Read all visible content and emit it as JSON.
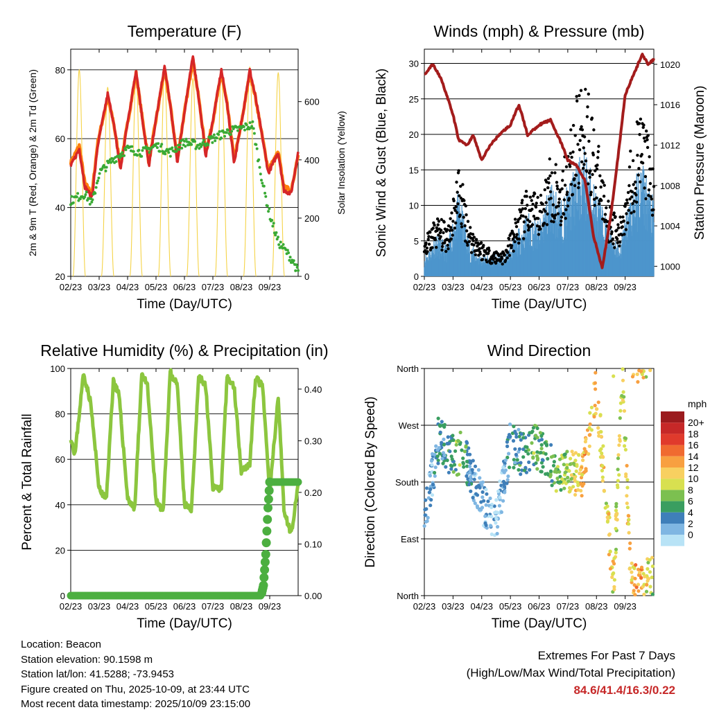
{
  "colors": {
    "temp2m": "#d62728",
    "temp9m": "#ff7f0e",
    "dewpoint": "#3aaa35",
    "solar": "#f5d347",
    "wind": "#4c95cc",
    "gust": "#000000",
    "pressure": "#a31c1c",
    "rh": "#8cc63f",
    "precip": "#4caf40",
    "extremes": "#c62828"
  },
  "x_ticks": [
    "02/23",
    "03/23",
    "04/23",
    "05/23",
    "06/23",
    "07/23",
    "08/23",
    "09/23"
  ],
  "chart_data": [
    {
      "type": "line",
      "title": "Temperature (F)",
      "xlabel": "Time (Day/UTC)",
      "ylabel": "2m & 9m T (Red, Orange) & 2m Td (Green)",
      "ylabel_right": "Solar Insolation (Yellow)",
      "ylim": [
        20,
        86
      ],
      "yticks": [
        20,
        40,
        60,
        80
      ],
      "ylim_right": [
        0,
        780
      ],
      "yticks_right": [
        0,
        200,
        400,
        600
      ],
      "series": [
        {
          "name": "2m T",
          "x": [
            0.0,
            0.3,
            0.5,
            0.75,
            0.95,
            1.3,
            1.5,
            1.75,
            1.95,
            2.3,
            2.5,
            2.75,
            2.95,
            3.3,
            3.5,
            3.75,
            3.95,
            4.3,
            4.5,
            4.75,
            4.95,
            5.3,
            5.5,
            5.75,
            5.95,
            6.3,
            6.5,
            6.75,
            6.95,
            7.3,
            7.5,
            7.75,
            8.0
          ],
          "values": [
            52,
            57,
            46,
            43,
            58,
            73,
            65,
            51,
            62,
            80,
            67,
            52,
            63,
            81,
            70,
            53,
            65,
            84,
            72,
            55,
            63,
            80,
            70,
            53,
            62,
            80,
            72,
            60,
            50,
            56,
            45,
            44,
            56
          ]
        },
        {
          "name": "9m T",
          "x": [
            0.0,
            0.3,
            0.5,
            0.75,
            0.95,
            1.3,
            1.5,
            1.75,
            1.95,
            2.3,
            2.5,
            2.75,
            2.95,
            3.3,
            3.5,
            3.75,
            3.95,
            4.3,
            4.5,
            4.75,
            4.95,
            5.3,
            5.5,
            5.75,
            5.95,
            6.3,
            6.5,
            6.75,
            6.95,
            7.3,
            7.5,
            7.75,
            8.0
          ],
          "values": [
            53,
            58,
            47,
            44,
            59,
            72,
            65,
            52,
            62,
            79,
            67,
            53,
            63,
            80,
            70,
            54,
            65,
            83,
            72,
            56,
            63,
            79,
            70,
            54,
            62,
            79,
            72,
            60,
            51,
            56,
            46,
            45,
            55
          ]
        },
        {
          "name": "2m Td",
          "x": [
            0.0,
            0.5,
            0.75,
            1.0,
            1.5,
            2.0,
            2.5,
            3.0,
            3.5,
            4.0,
            4.5,
            5.0,
            5.5,
            6.0,
            6.4,
            6.6,
            6.8,
            7.0,
            7.3,
            7.6,
            7.85,
            8.0
          ],
          "values": [
            42,
            44,
            41,
            50,
            54,
            57,
            56,
            58,
            56,
            59,
            58,
            60,
            62,
            63,
            64,
            54,
            45,
            38,
            30,
            27,
            24,
            21
          ]
        },
        {
          "name": "Solar Insolation",
          "axis": "right",
          "day_peaks": [
            0.3,
            1.3,
            2.3,
            3.3,
            4.3,
            5.3,
            6.3,
            7.3
          ],
          "peak_values": [
            710,
            650,
            690,
            700,
            680,
            700,
            720,
            700
          ]
        }
      ]
    },
    {
      "type": "scatter",
      "title": "Winds (mph) & Pressure (mb)",
      "xlabel": "Time (Day/UTC)",
      "ylabel": "Sonic Wind & Gust (Blue, Black)",
      "ylabel_right": "Station Pressure (Maroon)",
      "ylim": [
        0,
        32
      ],
      "yticks": [
        0,
        5,
        10,
        15,
        20,
        25,
        30
      ],
      "ylim_right": [
        999,
        1021.5
      ],
      "yticks_right": [
        1000,
        1004,
        1008,
        1012,
        1016,
        1020
      ],
      "series": [
        {
          "name": "Sonic Wind",
          "x": [
            0.0,
            0.4,
            0.8,
            1.2,
            1.6,
            2.0,
            2.4,
            2.8,
            3.2,
            3.6,
            4.0,
            4.4,
            4.8,
            5.2,
            5.6,
            6.0,
            6.4,
            6.8,
            7.2,
            7.6,
            8.0
          ],
          "values": [
            2,
            4,
            3,
            8,
            3,
            2,
            2,
            2,
            4,
            6,
            5,
            9,
            7,
            10,
            12,
            8,
            5,
            3,
            8,
            11,
            7
          ]
        },
        {
          "name": "Gust",
          "x": [
            0.0,
            0.4,
            0.8,
            1.2,
            1.6,
            2.0,
            2.4,
            2.8,
            3.2,
            3.6,
            4.0,
            4.4,
            4.8,
            5.2,
            5.6,
            6.0,
            6.4,
            6.8,
            7.2,
            7.6,
            8.0
          ],
          "values": [
            4,
            7,
            6,
            13,
            6,
            4,
            3,
            3,
            7,
            10,
            9,
            14,
            12,
            19,
            24,
            16,
            9,
            6,
            15,
            20,
            12
          ]
        },
        {
          "name": "Station Pressure",
          "axis": "right",
          "x": [
            0.0,
            0.3,
            0.6,
            1.0,
            1.2,
            1.5,
            1.7,
            2.0,
            2.3,
            2.6,
            3.0,
            3.3,
            3.6,
            4.0,
            4.4,
            4.8,
            5.0,
            5.3,
            5.6,
            5.9,
            6.2,
            6.5,
            6.8,
            7.0,
            7.3,
            7.6,
            7.8,
            8.0
          ],
          "values": [
            1019,
            1020,
            1018.5,
            1015,
            1012.5,
            1012,
            1013,
            1010.5,
            1012,
            1013,
            1014,
            1016,
            1013,
            1014,
            1014.5,
            1012,
            1010.5,
            1010,
            1008.5,
            1003,
            999.8,
            1005,
            1012,
            1017,
            1019,
            1021,
            1020,
            1020.5
          ]
        }
      ]
    },
    {
      "type": "line",
      "title": "Relative Humidity (%) & Precipitation (in)",
      "xlabel": "Time (Day/UTC)",
      "ylabel": "Percent & Total Rainfall",
      "ylim": [
        0,
        100
      ],
      "yticks": [
        0,
        20,
        40,
        60,
        80,
        100
      ],
      "ylim_right": [
        0,
        0.44
      ],
      "yticks_right": [
        "0.00",
        "0.10",
        "0.20",
        "0.30",
        "0.40"
      ],
      "series": [
        {
          "name": "Relative Humidity",
          "x": [
            0.0,
            0.15,
            0.45,
            0.7,
            1.0,
            1.25,
            1.5,
            1.7,
            2.0,
            2.25,
            2.5,
            2.7,
            3.0,
            3.25,
            3.5,
            3.75,
            4.0,
            4.25,
            4.5,
            4.75,
            5.0,
            5.3,
            5.5,
            5.75,
            6.0,
            6.3,
            6.5,
            6.75,
            7.0,
            7.3,
            7.5,
            7.75,
            8.0
          ],
          "values": [
            70,
            62,
            98,
            85,
            47,
            42,
            95,
            88,
            43,
            38,
            98,
            92,
            42,
            36,
            99,
            92,
            40,
            38,
            97,
            92,
            48,
            47,
            96,
            92,
            55,
            58,
            96,
            92,
            45,
            88,
            38,
            27,
            48
          ]
        },
        {
          "name": "Total Precipitation",
          "axis": "right",
          "x": [
            0.0,
            6.7,
            6.78,
            6.86,
            6.94,
            7.0,
            8.0
          ],
          "values": [
            0.0,
            0.0,
            0.02,
            0.08,
            0.17,
            0.22,
            0.22
          ]
        }
      ]
    },
    {
      "type": "scatter",
      "title": "Wind Direction",
      "xlabel": "Time (Day/UTC)",
      "ylabel": "Direction (Colored By Speed)",
      "yticks": [
        "North",
        "East",
        "South",
        "West",
        "North"
      ],
      "ylim": [
        0,
        360
      ],
      "legend_title": "mph",
      "legend_labels": [
        "20+",
        "18",
        "16",
        "14",
        "12",
        "10",
        "8",
        "6",
        "4",
        "2",
        "0"
      ],
      "legend_colors": [
        "#9b1b1e",
        "#c62828",
        "#e03a2c",
        "#f06a30",
        "#f8a040",
        "#f8d060",
        "#d8e050",
        "#7cc050",
        "#3a9e60",
        "#3f7fb9",
        "#7fb6e2",
        "#b8e3f6"
      ],
      "series": [
        {
          "name": "Direction",
          "x": [
            0.1,
            0.5,
            1.0,
            1.3,
            1.6,
            2.2,
            2.5,
            3.0,
            3.5,
            3.8,
            4.3,
            4.7,
            5.1,
            5.5,
            6.0,
            6.6,
            6.9,
            7.2,
            7.5,
            7.9
          ],
          "values": [
            140,
            250,
            220,
            230,
            200,
            130,
            120,
            240,
            220,
            240,
            215,
            190,
            200,
            185,
            330,
            15,
            350,
            20,
            10,
            30
          ],
          "speeds": [
            2,
            4,
            6,
            8,
            3,
            2,
            1,
            4,
            5,
            7,
            6,
            8,
            9,
            13,
            12,
            11,
            10,
            12,
            14,
            9
          ]
        }
      ]
    }
  ],
  "footer": {
    "location": "Location: Beacon",
    "elevation": "Station elevation: 90.1598 m",
    "latlon": "Station lat/lon: 41.5288; -73.9453",
    "created": "Figure created on Thu, 2025-10-09, at 23:44 UTC",
    "recent": "Most recent data timestamp: 2025/10/09 23:15:00",
    "extremes_title": "Extremes For Past 7 Days",
    "extremes_subtitle": "(High/Low/Max Wind/Total Precipitation)",
    "extremes_values": "84.6/41.4/16.3/0.22"
  }
}
